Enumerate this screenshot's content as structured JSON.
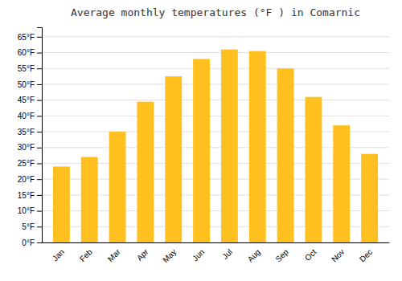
{
  "chart_data": {
    "type": "bar",
    "title": "Average monthly temperatures (°F ) in Comarnic",
    "categories": [
      "Jan",
      "Feb",
      "Mar",
      "Apr",
      "May",
      "Jun",
      "Jul",
      "Aug",
      "Sep",
      "Oct",
      "Nov",
      "Dec"
    ],
    "values": [
      24,
      27,
      35,
      44.5,
      52.5,
      58,
      61,
      60.5,
      55,
      46,
      37,
      28
    ],
    "color": "#FFC020",
    "ylim": [
      0,
      68
    ],
    "yticks": [
      {
        "value": 0,
        "label": "0°F"
      },
      {
        "value": 5,
        "label": "5°F"
      },
      {
        "value": 10,
        "label": "10°F"
      },
      {
        "value": 15,
        "label": "15°F"
      },
      {
        "value": 20,
        "label": "20°F"
      },
      {
        "value": 25,
        "label": "25°F"
      },
      {
        "value": 30,
        "label": "30°F"
      },
      {
        "value": 35,
        "label": "35°F"
      },
      {
        "value": 40,
        "label": "40°F"
      },
      {
        "value": 45,
        "label": "45°F"
      },
      {
        "value": 50,
        "label": "50°F"
      },
      {
        "value": 55,
        "label": "55°F"
      },
      {
        "value": 60,
        "label": "60°F"
      },
      {
        "value": 65,
        "label": "65°F"
      }
    ],
    "grid": true
  }
}
